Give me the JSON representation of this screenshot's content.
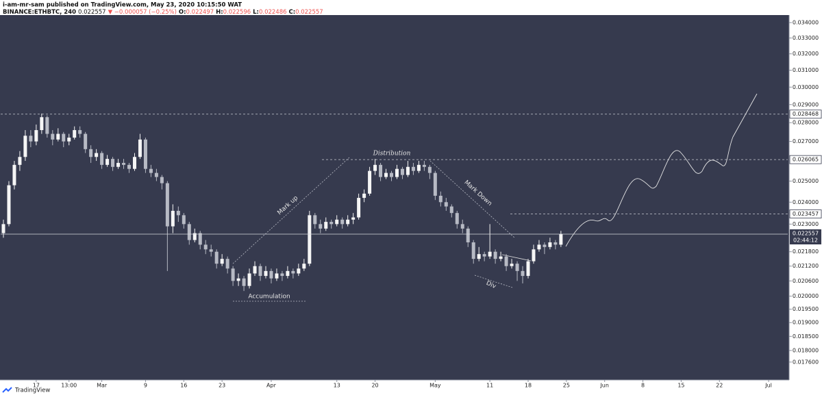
{
  "chart_data": {
    "type": "candlestick",
    "header": {
      "line1": "i-am-mr-sam published on TradingView.com, May 23, 2020 10:15:50 WAT",
      "symbol": "BINANCE:ETHBTC, 240",
      "last": "0.022557",
      "change": "▼ −0.000057 (−0.25%)",
      "o_label": "O:",
      "o": "0.022497",
      "h_label": "H:",
      "h": "0.022596",
      "l_label": "L:",
      "l": "0.022486",
      "c_label": "C:",
      "c": "0.022557"
    },
    "annotations": {
      "distribution": "Distribution",
      "mark_up": "Mark up",
      "mark_down": "Mark Down",
      "accumulation": "Accumulation",
      "div": "Div"
    },
    "footer": "TradingView",
    "log_scale": true,
    "grid": false,
    "up_color": "#f5f5f5",
    "down_color": "#b7bac4",
    "ylim": [
      0.017,
      0.0345
    ],
    "yticks": [
      {
        "value": 0.034,
        "label": "0.034000"
      },
      {
        "value": 0.033,
        "label": "0.033000"
      },
      {
        "value": 0.032,
        "label": "0.032000"
      },
      {
        "value": 0.031,
        "label": "0.031000"
      },
      {
        "value": 0.03,
        "label": "0.030000"
      },
      {
        "value": 0.029,
        "label": "0.029000"
      },
      {
        "value": 0.028,
        "label": "0.028000"
      },
      {
        "value": 0.027,
        "label": "0.027000"
      },
      {
        "value": 0.026,
        "label": "0.026000"
      },
      {
        "value": 0.025,
        "label": "0.025000"
      },
      {
        "value": 0.024,
        "label": "0.024000"
      },
      {
        "value": 0.023,
        "label": "0.023000"
      },
      {
        "value": 0.0218,
        "label": "0.021800"
      },
      {
        "value": 0.0212,
        "label": "0.021200"
      },
      {
        "value": 0.0206,
        "label": "0.020600"
      },
      {
        "value": 0.02,
        "label": "0.020000"
      },
      {
        "value": 0.0195,
        "label": "0.019500"
      },
      {
        "value": 0.019,
        "label": "0.019000"
      },
      {
        "value": 0.0185,
        "label": "0.018500"
      },
      {
        "value": 0.018,
        "label": "0.018000"
      },
      {
        "value": 0.0176,
        "label": "0.017600"
      }
    ],
    "levels": [
      0.028468,
      0.026065,
      0.023457
    ],
    "last_price": 0.022557,
    "countdown": "02:44:12",
    "categories": [
      null,
      null,
      null,
      null,
      null,
      null,
      "17",
      null,
      null,
      null,
      null,
      null,
      "13:00",
      null,
      null,
      null,
      null,
      null,
      "Mar",
      null,
      null,
      null,
      null,
      null,
      null,
      null,
      "9",
      null,
      null,
      null,
      null,
      null,
      null,
      "16",
      null,
      null,
      null,
      null,
      null,
      null,
      "23",
      null,
      null,
      null,
      null,
      null,
      null,
      null,
      null,
      "Apr",
      null,
      null,
      null,
      null,
      null,
      null,
      null,
      null,
      null,
      null,
      null,
      "13",
      null,
      null,
      null,
      null,
      null,
      null,
      "20",
      null,
      null,
      null,
      null,
      null,
      null,
      null,
      null,
      null,
      null,
      "May",
      null,
      null,
      null,
      null,
      null,
      null,
      null,
      null,
      null,
      "11",
      null,
      null,
      null,
      null,
      null,
      null,
      "18",
      null,
      null,
      null,
      null,
      null,
      null,
      "25",
      null,
      null,
      null,
      null,
      null,
      null,
      "Jun",
      null,
      null,
      null,
      null,
      null,
      null,
      "8",
      null,
      null,
      null,
      null,
      null,
      null,
      "15",
      null,
      null,
      null,
      null,
      null,
      null,
      "22",
      null,
      null,
      null,
      null,
      null,
      null,
      null,
      null,
      "Jul",
      null,
      null,
      null
    ],
    "values": [
      [
        0.0226,
        0.0232,
        0.0224,
        0.023
      ],
      [
        0.023,
        0.025,
        0.0229,
        0.0248
      ],
      [
        0.0248,
        0.026,
        0.0246,
        0.0258
      ],
      [
        0.0258,
        0.0265,
        0.0255,
        0.0262
      ],
      [
        0.0262,
        0.0276,
        0.026,
        0.0273
      ],
      [
        0.0273,
        0.0276,
        0.0267,
        0.027
      ],
      [
        0.027,
        0.0279,
        0.0268,
        0.0276
      ],
      [
        0.0276,
        0.0285,
        0.0274,
        0.0283
      ],
      [
        0.0283,
        0.0284,
        0.0272,
        0.0274
      ],
      [
        0.0274,
        0.0276,
        0.0268,
        0.0271
      ],
      [
        0.0271,
        0.0277,
        0.027,
        0.0274
      ],
      [
        0.0274,
        0.0275,
        0.0267,
        0.027
      ],
      [
        0.027,
        0.0274,
        0.0268,
        0.0272
      ],
      [
        0.0272,
        0.0278,
        0.0271,
        0.0276
      ],
      [
        0.0276,
        0.0278,
        0.0272,
        0.0274
      ],
      [
        0.0274,
        0.0275,
        0.0264,
        0.0266
      ],
      [
        0.0266,
        0.0268,
        0.0259,
        0.0262
      ],
      [
        0.0262,
        0.0266,
        0.026,
        0.0264
      ],
      [
        0.0264,
        0.0265,
        0.0256,
        0.0258
      ],
      [
        0.0258,
        0.0263,
        0.0257,
        0.0261
      ],
      [
        0.0261,
        0.0262,
        0.0255,
        0.0257
      ],
      [
        0.0257,
        0.0261,
        0.0256,
        0.0259
      ],
      [
        0.0259,
        0.0261,
        0.0256,
        0.0258
      ],
      [
        0.0258,
        0.0259,
        0.0254,
        0.0256
      ],
      [
        0.0256,
        0.0264,
        0.0255,
        0.0262
      ],
      [
        0.0262,
        0.0274,
        0.0261,
        0.0271
      ],
      [
        0.0271,
        0.0272,
        0.0254,
        0.0256
      ],
      [
        0.0256,
        0.0258,
        0.0252,
        0.0254
      ],
      [
        0.0254,
        0.0256,
        0.025,
        0.0252
      ],
      [
        0.0252,
        0.0253,
        0.0246,
        0.0249
      ],
      [
        0.0249,
        0.025,
        0.021,
        0.0229
      ],
      [
        0.0229,
        0.0239,
        0.0226,
        0.0236
      ],
      [
        0.0236,
        0.0238,
        0.0231,
        0.0234
      ],
      [
        0.0234,
        0.0235,
        0.0228,
        0.023
      ],
      [
        0.023,
        0.0231,
        0.0221,
        0.0223
      ],
      [
        0.0223,
        0.0228,
        0.0222,
        0.0226
      ],
      [
        0.0226,
        0.0227,
        0.0219,
        0.0221
      ],
      [
        0.0221,
        0.0223,
        0.0217,
        0.0219
      ],
      [
        0.0219,
        0.0221,
        0.0216,
        0.0218
      ],
      [
        0.0218,
        0.0219,
        0.0211,
        0.0213
      ],
      [
        0.0213,
        0.0217,
        0.0212,
        0.0215
      ],
      [
        0.0215,
        0.0216,
        0.0209,
        0.0211
      ],
      [
        0.0211,
        0.0212,
        0.0204,
        0.0206
      ],
      [
        0.0206,
        0.0209,
        0.0204,
        0.0207
      ],
      [
        0.0207,
        0.0208,
        0.0202,
        0.0204
      ],
      [
        0.0204,
        0.0211,
        0.0203,
        0.0209
      ],
      [
        0.0209,
        0.0214,
        0.0208,
        0.0212
      ],
      [
        0.0212,
        0.0213,
        0.0206,
        0.0208
      ],
      [
        0.0208,
        0.0212,
        0.0207,
        0.021
      ],
      [
        0.021,
        0.0211,
        0.0205,
        0.0207
      ],
      [
        0.0207,
        0.0211,
        0.0206,
        0.0209
      ],
      [
        0.0209,
        0.021,
        0.0206,
        0.0208
      ],
      [
        0.0208,
        0.0212,
        0.0207,
        0.021
      ],
      [
        0.021,
        0.0211,
        0.0207,
        0.0209
      ],
      [
        0.0209,
        0.0213,
        0.0208,
        0.0211
      ],
      [
        0.0211,
        0.0215,
        0.021,
        0.0213
      ],
      [
        0.0213,
        0.0236,
        0.0212,
        0.0234
      ],
      [
        0.0234,
        0.0235,
        0.0228,
        0.023
      ],
      [
        0.023,
        0.0232,
        0.0226,
        0.0228
      ],
      [
        0.0228,
        0.0233,
        0.0227,
        0.0231
      ],
      [
        0.0231,
        0.0232,
        0.0228,
        0.023
      ],
      [
        0.023,
        0.0234,
        0.0229,
        0.0232
      ],
      [
        0.0232,
        0.0233,
        0.0228,
        0.023
      ],
      [
        0.023,
        0.0234,
        0.0229,
        0.0232
      ],
      [
        0.0232,
        0.0235,
        0.023,
        0.0233
      ],
      [
        0.0233,
        0.0244,
        0.0232,
        0.0242
      ],
      [
        0.0242,
        0.0246,
        0.024,
        0.0244
      ],
      [
        0.0244,
        0.0257,
        0.0243,
        0.0255
      ],
      [
        0.0255,
        0.0261,
        0.0253,
        0.0258
      ],
      [
        0.0258,
        0.0259,
        0.025,
        0.0252
      ],
      [
        0.0252,
        0.0256,
        0.0251,
        0.0254
      ],
      [
        0.0254,
        0.0255,
        0.025,
        0.0252
      ],
      [
        0.0252,
        0.0258,
        0.0251,
        0.0256
      ],
      [
        0.0256,
        0.0257,
        0.0251,
        0.0253
      ],
      [
        0.0253,
        0.026,
        0.0252,
        0.0257
      ],
      [
        0.0257,
        0.0259,
        0.0253,
        0.0255
      ],
      [
        0.0255,
        0.026,
        0.0254,
        0.0258
      ],
      [
        0.0258,
        0.026,
        0.0255,
        0.0257
      ],
      [
        0.0257,
        0.0258,
        0.0251,
        0.0254
      ],
      [
        0.0254,
        0.0255,
        0.0241,
        0.0243
      ],
      [
        0.0243,
        0.0245,
        0.0238,
        0.024
      ],
      [
        0.024,
        0.0242,
        0.0236,
        0.0238
      ],
      [
        0.0238,
        0.0239,
        0.0233,
        0.0235
      ],
      [
        0.0235,
        0.0236,
        0.0228,
        0.023
      ],
      [
        0.023,
        0.0232,
        0.0226,
        0.0228
      ],
      [
        0.0228,
        0.0229,
        0.022,
        0.0222
      ],
      [
        0.0222,
        0.0223,
        0.0213,
        0.0215
      ],
      [
        0.0215,
        0.022,
        0.0214,
        0.0217
      ],
      [
        0.0217,
        0.0218,
        0.0214,
        0.0216
      ],
      [
        0.0216,
        0.023,
        0.0215,
        0.0218
      ],
      [
        0.0218,
        0.0219,
        0.0213,
        0.0215
      ],
      [
        0.0215,
        0.0218,
        0.0214,
        0.0216
      ],
      [
        0.0216,
        0.0217,
        0.021,
        0.0212
      ],
      [
        0.0212,
        0.0215,
        0.0211,
        0.0213
      ],
      [
        0.0213,
        0.0214,
        0.0206,
        0.021
      ],
      [
        0.021,
        0.0212,
        0.0205,
        0.0208
      ],
      [
        0.0208,
        0.0215,
        0.0207,
        0.0214
      ],
      [
        0.0214,
        0.0221,
        0.0213,
        0.0219
      ],
      [
        0.0219,
        0.0223,
        0.0218,
        0.0221
      ],
      [
        0.0221,
        0.0222,
        0.0217,
        0.022
      ],
      [
        0.022,
        0.0224,
        0.0219,
        0.0222
      ],
      [
        0.0222,
        0.0223,
        0.0219,
        0.0221
      ],
      [
        0.0221,
        0.0227,
        0.022,
        0.022557
      ],
      null,
      null,
      null,
      null,
      null,
      null,
      null,
      null,
      null,
      null,
      null,
      null,
      null,
      null,
      null,
      null,
      null,
      null,
      null,
      null,
      null,
      null,
      null,
      null,
      null,
      null,
      null,
      null,
      null,
      null,
      null,
      null,
      null,
      null,
      null,
      null,
      null,
      null,
      null,
      null,
      null
    ]
  }
}
